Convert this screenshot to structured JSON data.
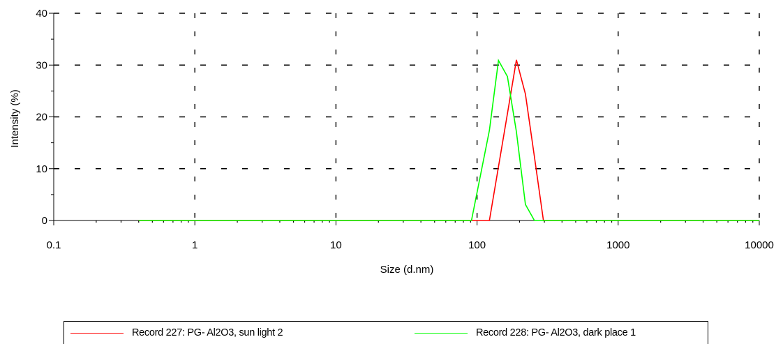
{
  "chart_data": {
    "type": "line",
    "xlabel": "Size (d.nm)",
    "ylabel": "Intensity (%)",
    "xscale": "log",
    "xlim": [
      0.1,
      10000
    ],
    "ylim": [
      0,
      40
    ],
    "x_tick_labels": [
      "0.1",
      "1",
      "10",
      "100",
      "1000",
      "10000"
    ],
    "x_tick_values": [
      0.1,
      1,
      10,
      100,
      1000,
      10000
    ],
    "y_tick_labels": [
      "0",
      "10",
      "20",
      "30",
      "40"
    ],
    "y_tick_values": [
      0,
      10,
      20,
      30,
      40
    ],
    "grid": true,
    "legend_position": "bottom",
    "series": [
      {
        "name": "Record 227: PG- Al2O3, sun light 2",
        "color": "#ff0000",
        "x": [
          0.4,
          10,
          100,
          122.4,
          164.2,
          190.1,
          220.2,
          255,
          295.3,
          342,
          400,
          1000,
          10000
        ],
        "y": [
          0,
          0,
          0,
          0,
          20.6,
          31,
          24.4,
          12.3,
          0,
          0,
          0,
          0,
          0
        ]
      },
      {
        "name": "Record 228: PG- Al2O3, dark place 1",
        "color": "#00ff00",
        "x": [
          0.4,
          10,
          91.3,
          122.4,
          141.8,
          164.2,
          190.1,
          220.2,
          255,
          1000,
          10000
        ],
        "y": [
          0,
          0,
          0,
          17.4,
          30.9,
          27.8,
          17.1,
          3.1,
          0,
          0,
          0
        ]
      }
    ]
  }
}
